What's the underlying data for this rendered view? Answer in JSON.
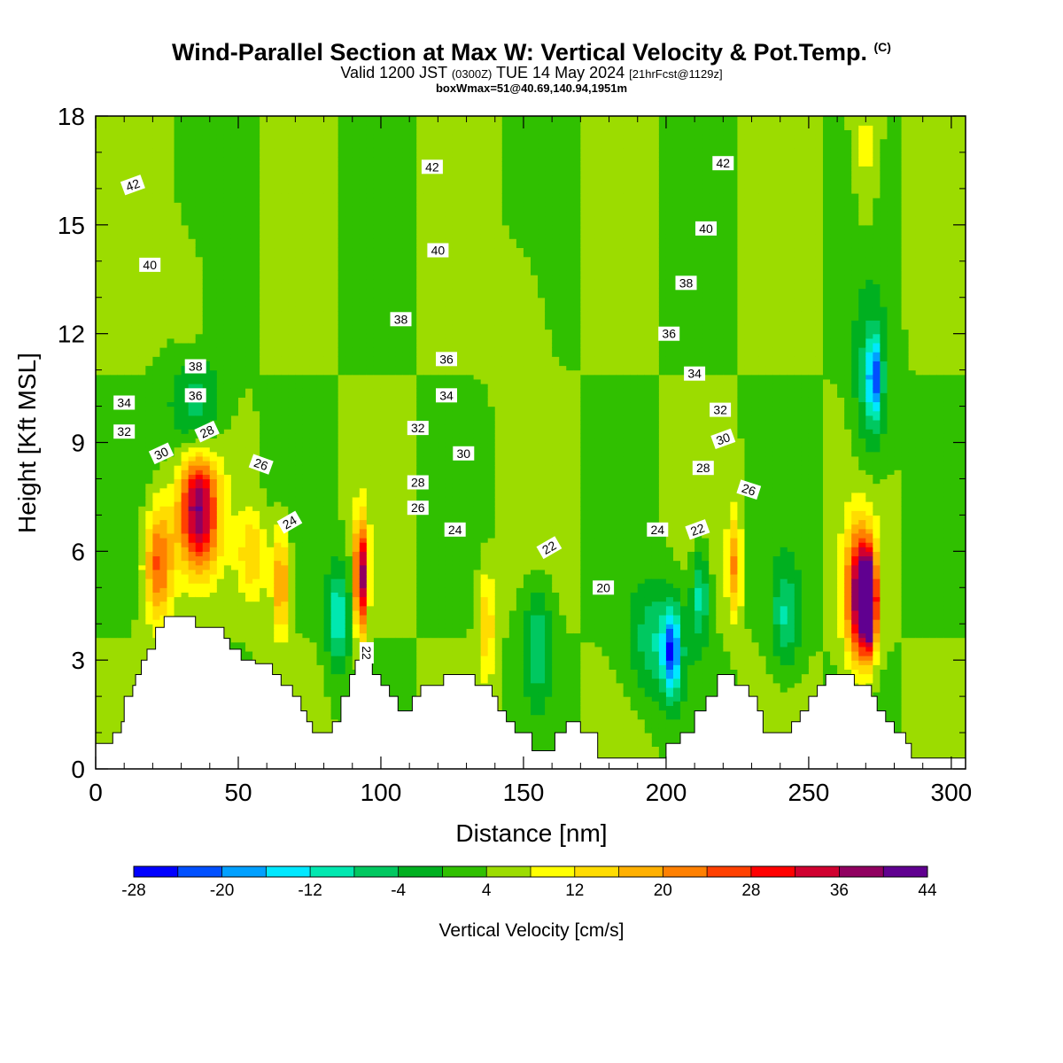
{
  "header": {
    "title": "Wind-Parallel Section at Max W: Vertical Velocity & Pot.Temp.",
    "copyright": "(C)",
    "valid_prefix": "Valid 1200 JST",
    "utc": "(0300Z)",
    "valid_date": "TUE 14 May 2024",
    "forecast": "[21hrFcst@1129z]",
    "box": "boxWmax=51@40.69,140.94,1951m"
  },
  "colorbar": {
    "label": "Vertical Velocity [cm/s]",
    "tick_labels": [
      "-28",
      "-20",
      "-12",
      "-4",
      "4",
      "12",
      "20",
      "28",
      "36",
      "44"
    ],
    "colors": [
      "#0000ff",
      "#0050ff",
      "#00a0ff",
      "#00e8ff",
      "#00e8b0",
      "#00c860",
      "#00b020",
      "#30c000",
      "#9cdc00",
      "#ffff00",
      "#ffdc00",
      "#ffb000",
      "#ff8000",
      "#ff4000",
      "#ff0000",
      "#d00030",
      "#900060",
      "#600090"
    ]
  },
  "chart_data": {
    "type": "heatmap",
    "xlabel": "Distance [nm]",
    "ylabel": "Height [Kft MSL]",
    "xlim": [
      0,
      305
    ],
    "ylim": [
      0,
      18
    ],
    "x_ticks": [
      0,
      50,
      100,
      150,
      200,
      250,
      300
    ],
    "y_ticks": [
      0,
      3,
      6,
      9,
      12,
      15,
      18
    ],
    "x_tick_labels": [
      "0",
      "50",
      "100",
      "150",
      "200",
      "250",
      "300"
    ],
    "y_tick_labels": [
      "0",
      "3",
      "6",
      "9",
      "12",
      "15",
      "18"
    ],
    "terrain": [
      [
        0,
        0.7
      ],
      [
        6,
        0.7
      ],
      [
        6,
        1.0
      ],
      [
        9,
        1.0
      ],
      [
        9,
        1.3
      ],
      [
        10,
        1.3
      ],
      [
        10,
        2.0
      ],
      [
        13,
        2.0
      ],
      [
        13,
        2.3
      ],
      [
        14,
        2.3
      ],
      [
        14,
        2.6
      ],
      [
        16,
        2.6
      ],
      [
        16,
        3.0
      ],
      [
        18,
        3.0
      ],
      [
        18,
        3.3
      ],
      [
        21,
        3.3
      ],
      [
        21,
        3.9
      ],
      [
        24,
        3.9
      ],
      [
        24,
        4.2
      ],
      [
        35,
        4.2
      ],
      [
        35,
        3.9
      ],
      [
        45,
        3.9
      ],
      [
        45,
        3.6
      ],
      [
        47,
        3.6
      ],
      [
        47,
        3.3
      ],
      [
        51,
        3.3
      ],
      [
        51,
        3.0
      ],
      [
        56,
        3.0
      ],
      [
        56,
        2.9
      ],
      [
        62,
        2.9
      ],
      [
        62,
        2.6
      ],
      [
        65,
        2.6
      ],
      [
        65,
        2.3
      ],
      [
        69,
        2.3
      ],
      [
        69,
        2.0
      ],
      [
        72,
        2.0
      ],
      [
        72,
        1.6
      ],
      [
        74,
        1.6
      ],
      [
        74,
        1.3
      ],
      [
        76,
        1.3
      ],
      [
        76,
        1.0
      ],
      [
        83,
        1.0
      ],
      [
        83,
        1.3
      ],
      [
        86,
        1.3
      ],
      [
        86,
        2.0
      ],
      [
        89,
        2.0
      ],
      [
        89,
        2.6
      ],
      [
        91,
        2.6
      ],
      [
        91,
        3.0
      ],
      [
        97,
        3.0
      ],
      [
        97,
        2.6
      ],
      [
        100,
        2.6
      ],
      [
        100,
        2.3
      ],
      [
        103,
        2.3
      ],
      [
        103,
        2.0
      ],
      [
        106,
        2.0
      ],
      [
        106,
        1.6
      ],
      [
        111,
        1.6
      ],
      [
        111,
        2.0
      ],
      [
        114,
        2.0
      ],
      [
        114,
        2.3
      ],
      [
        122,
        2.3
      ],
      [
        122,
        2.6
      ],
      [
        133,
        2.6
      ],
      [
        133,
        2.3
      ],
      [
        139,
        2.3
      ],
      [
        139,
        2.0
      ],
      [
        141,
        2.0
      ],
      [
        141,
        1.6
      ],
      [
        144,
        1.6
      ],
      [
        144,
        1.3
      ],
      [
        147,
        1.3
      ],
      [
        147,
        1.0
      ],
      [
        153,
        1.0
      ],
      [
        153,
        0.5
      ],
      [
        161,
        0.5
      ],
      [
        161,
        1.0
      ],
      [
        165,
        1.0
      ],
      [
        165,
        1.3
      ],
      [
        170,
        1.3
      ],
      [
        170,
        1.0
      ],
      [
        176,
        1.0
      ],
      [
        176,
        0.3
      ],
      [
        200,
        0.3
      ],
      [
        200,
        0.7
      ],
      [
        205,
        0.7
      ],
      [
        205,
        1.0
      ],
      [
        210,
        1.0
      ],
      [
        210,
        1.6
      ],
      [
        214,
        1.6
      ],
      [
        214,
        2.0
      ],
      [
        218,
        2.0
      ],
      [
        218,
        2.6
      ],
      [
        224,
        2.6
      ],
      [
        224,
        2.3
      ],
      [
        229,
        2.3
      ],
      [
        229,
        2.0
      ],
      [
        232,
        2.0
      ],
      [
        232,
        1.6
      ],
      [
        234,
        1.6
      ],
      [
        234,
        1.0
      ],
      [
        244,
        1.0
      ],
      [
        244,
        1.3
      ],
      [
        247,
        1.3
      ],
      [
        247,
        1.6
      ],
      [
        250,
        1.6
      ],
      [
        250,
        2.0
      ],
      [
        253,
        2.0
      ],
      [
        253,
        2.3
      ],
      [
        256,
        2.3
      ],
      [
        256,
        2.6
      ],
      [
        266,
        2.6
      ],
      [
        266,
        2.3
      ],
      [
        272,
        2.3
      ],
      [
        272,
        2.0
      ],
      [
        274,
        2.0
      ],
      [
        274,
        1.6
      ],
      [
        277,
        1.6
      ],
      [
        277,
        1.3
      ],
      [
        280,
        1.3
      ],
      [
        280,
        1.0
      ],
      [
        284,
        1.0
      ],
      [
        284,
        0.7
      ],
      [
        286,
        0.7
      ],
      [
        286,
        0.3
      ],
      [
        305,
        0.3
      ]
    ],
    "w_features": [
      {
        "x": 22,
        "z": 5.7,
        "sx": 5,
        "sz": 1.6,
        "value": 22
      },
      {
        "x": 36,
        "z": 6.8,
        "sx": 7,
        "sz": 1.4,
        "value": 30
      },
      {
        "x": 36,
        "z": 7.9,
        "sx": 6,
        "sz": 0.9,
        "value": 12
      },
      {
        "x": 55,
        "z": 5.9,
        "sx": 5,
        "sz": 1.2,
        "value": 12
      },
      {
        "x": 65,
        "z": 5.2,
        "sx": 3,
        "sz": 1.5,
        "value": 18
      },
      {
        "x": 85,
        "z": 4.2,
        "sx": 4,
        "sz": 1.4,
        "value": -16
      },
      {
        "x": 93,
        "z": 5.3,
        "sx": 2.2,
        "sz": 1.5,
        "value": 36
      },
      {
        "x": 137,
        "z": 4.0,
        "sx": 3,
        "sz": 1.5,
        "value": 12
      },
      {
        "x": 155,
        "z": 3.5,
        "sx": 5,
        "sz": 1.5,
        "value": -12
      },
      {
        "x": 197,
        "z": 3.5,
        "sx": 10,
        "sz": 1.6,
        "value": -12
      },
      {
        "x": 202,
        "z": 3.2,
        "sx": 3,
        "sz": 1.2,
        "value": -20
      },
      {
        "x": 212,
        "z": 4.8,
        "sx": 3,
        "sz": 1.3,
        "value": -14
      },
      {
        "x": 224,
        "z": 5.6,
        "sx": 2.5,
        "sz": 1.4,
        "value": 16
      },
      {
        "x": 242,
        "z": 4.2,
        "sx": 5,
        "sz": 1.4,
        "value": -12
      },
      {
        "x": 268,
        "z": 4.8,
        "sx": 5,
        "sz": 1.8,
        "value": 36
      },
      {
        "x": 271,
        "z": 4.6,
        "sx": 2.5,
        "sz": 1.2,
        "value": 46
      },
      {
        "x": 35,
        "z": 10.1,
        "sx": 9,
        "sz": 1.3,
        "value": -10
      },
      {
        "x": 272,
        "z": 10.6,
        "sx": 6,
        "sz": 2.2,
        "value": -12
      },
      {
        "x": 273,
        "z": 10.8,
        "sx": 2,
        "sz": 1.0,
        "value": -18
      },
      {
        "x": 270,
        "z": 16.8,
        "sx": 4,
        "sz": 2.0,
        "value": 6
      },
      {
        "x": 33,
        "z": 13.0,
        "sx": 5,
        "sz": 1.5,
        "value": 5
      },
      {
        "x": 150,
        "z": 12.2,
        "sx": 8,
        "sz": 2.5,
        "value": 4
      }
    ],
    "theta_levels": [
      20,
      22,
      24,
      26,
      28,
      30,
      32,
      34,
      36,
      38,
      40,
      42
    ],
    "contour_labels": [
      {
        "text": "42",
        "x": 13,
        "z": 16.1,
        "angle": -20
      },
      {
        "text": "42",
        "x": 118,
        "z": 16.6,
        "angle": 0
      },
      {
        "text": "42",
        "x": 220,
        "z": 16.7,
        "angle": 0
      },
      {
        "text": "40",
        "x": 19,
        "z": 13.9,
        "angle": 0
      },
      {
        "text": "40",
        "x": 120,
        "z": 14.3,
        "angle": 0
      },
      {
        "text": "40",
        "x": 214,
        "z": 14.9,
        "angle": 0
      },
      {
        "text": "38",
        "x": 107,
        "z": 12.4,
        "angle": 0
      },
      {
        "text": "38",
        "x": 207,
        "z": 13.4,
        "angle": 0
      },
      {
        "text": "38",
        "x": 35,
        "z": 11.1,
        "angle": 0
      },
      {
        "text": "36",
        "x": 35,
        "z": 10.3,
        "angle": 0
      },
      {
        "text": "36",
        "x": 123,
        "z": 11.3,
        "angle": 0
      },
      {
        "text": "36",
        "x": 201,
        "z": 12.0,
        "angle": 0
      },
      {
        "text": "34",
        "x": 10,
        "z": 10.1,
        "angle": 0
      },
      {
        "text": "34",
        "x": 123,
        "z": 10.3,
        "angle": 0
      },
      {
        "text": "34",
        "x": 210,
        "z": 10.9,
        "angle": 0
      },
      {
        "text": "32",
        "x": 10,
        "z": 9.3,
        "angle": 0
      },
      {
        "text": "32",
        "x": 113,
        "z": 9.4,
        "angle": 0
      },
      {
        "text": "32",
        "x": 219,
        "z": 9.9,
        "angle": 0
      },
      {
        "text": "30",
        "x": 23,
        "z": 8.7,
        "angle": -25
      },
      {
        "text": "30",
        "x": 129,
        "z": 8.7,
        "angle": 0
      },
      {
        "text": "30",
        "x": 220,
        "z": 9.1,
        "angle": -20
      },
      {
        "text": "28",
        "x": 39,
        "z": 9.3,
        "angle": -25
      },
      {
        "text": "28",
        "x": 113,
        "z": 7.9,
        "angle": 0
      },
      {
        "text": "28",
        "x": 213,
        "z": 8.3,
        "angle": 0
      },
      {
        "text": "26",
        "x": 58,
        "z": 8.4,
        "angle": 20
      },
      {
        "text": "26",
        "x": 113,
        "z": 7.2,
        "angle": 0
      },
      {
        "text": "26",
        "x": 229,
        "z": 7.7,
        "angle": 18
      },
      {
        "text": "24",
        "x": 68,
        "z": 6.8,
        "angle": -30
      },
      {
        "text": "24",
        "x": 126,
        "z": 6.6,
        "angle": 0
      },
      {
        "text": "24",
        "x": 197,
        "z": 6.6,
        "angle": 0
      },
      {
        "text": "22",
        "x": 211,
        "z": 6.6,
        "angle": -20
      },
      {
        "text": "22",
        "x": 159,
        "z": 6.1,
        "angle": -30
      },
      {
        "text": "22",
        "x": 95,
        "z": 3.2,
        "angle": 90
      },
      {
        "text": "20",
        "x": 178,
        "z": 5.0,
        "angle": 0
      }
    ]
  }
}
